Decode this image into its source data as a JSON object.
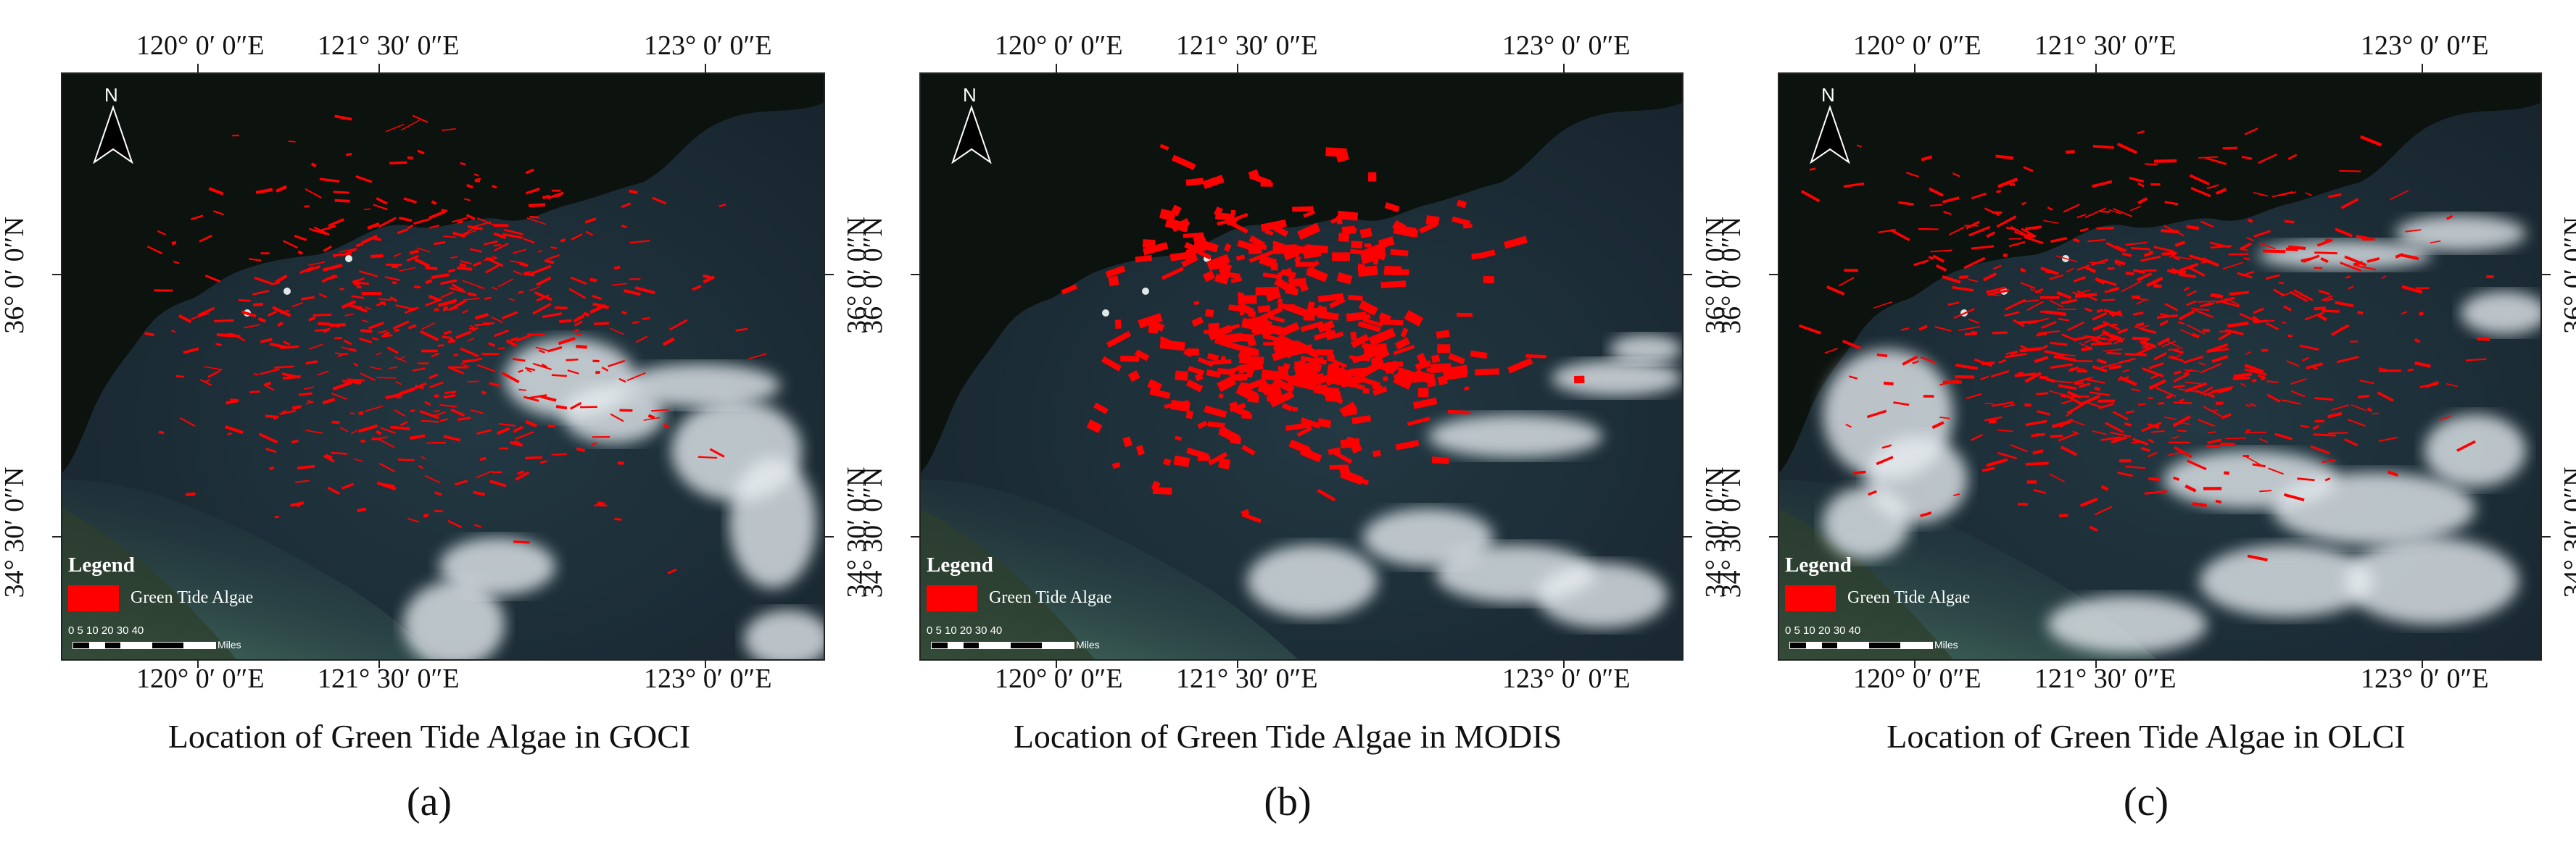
{
  "panels": [
    {
      "id": "a",
      "caption": "Location of Green Tide Algae in GOCI",
      "letter": "(a)",
      "top_lon_labels": [
        "120°  0′ 0″E",
        "121°  30′ 0″E",
        "123°  0′ 0″E"
      ],
      "bottom_lon_labels": [
        "120°  0′ 0″E",
        "121°  30′ 0″E",
        "123°  0′ 0″E"
      ],
      "left_lat_labels": [
        "36°  0′ 0″N",
        "34°  30′ 0″N"
      ],
      "right_lat_labels": [
        "36°  0′ 0″N",
        "34°  30′ 0″N"
      ],
      "legend_title": "Legend",
      "legend_label": "Green Tide Algae",
      "scale_numbers": "0  5 10   20    30    40",
      "scale_unit": "Miles",
      "north_label": "N",
      "seed": 7,
      "patch_count": 520
    },
    {
      "id": "b",
      "caption": "Location of Green Tide Algae in MODIS",
      "letter": "(b)",
      "top_lon_labels": [
        "120°  0′ 0″E",
        "121°  30′ 0″E",
        "123°  0′ 0″E"
      ],
      "bottom_lon_labels": [
        "120°  0′ 0″E",
        "121°  30′ 0″E",
        "123°  0′ 0″E"
      ],
      "left_lat_labels": [
        "36°  0′ 0″N",
        "34°  30′ 0″N"
      ],
      "right_lat_labels": [
        "36°  0′ 0″N",
        "34°  30′ 0″N"
      ],
      "legend_title": "Legend",
      "legend_label": "Green Tide Algae",
      "scale_numbers": "0  5 10   20    30    40",
      "scale_unit": "Miles",
      "north_label": "N",
      "seed": 23,
      "patch_count": 380
    },
    {
      "id": "c",
      "caption": "Location of Green Tide Algae in OLCI",
      "letter": "(c)",
      "top_lon_labels": [
        "120°  0′ 0″E",
        "121°  30′ 0″E",
        "123°  0′ 0″E"
      ],
      "bottom_lon_labels": [
        "120°  0′ 0″E",
        "121°  30′ 0″E",
        "123°  0′ 0″E"
      ],
      "left_lat_labels": [
        "36°  0′ 0″N",
        "34°  30′ 0″N"
      ],
      "right_lat_labels": [
        "36°  0′ 0″N",
        "34°  30′ 0″N"
      ],
      "legend_title": "Legend",
      "legend_label": "Green Tide Algae",
      "scale_numbers": "0  5 10   20    30    40",
      "scale_unit": "Miles",
      "north_label": "N",
      "seed": 51,
      "patch_count": 620
    }
  ],
  "colors": {
    "algae": "#ff0000",
    "sea_dark": "#17232c",
    "sea_mid": "#223842",
    "land": "#0c120e",
    "coast_green": "#3a5a4e",
    "cloud": "#e8eef2"
  }
}
